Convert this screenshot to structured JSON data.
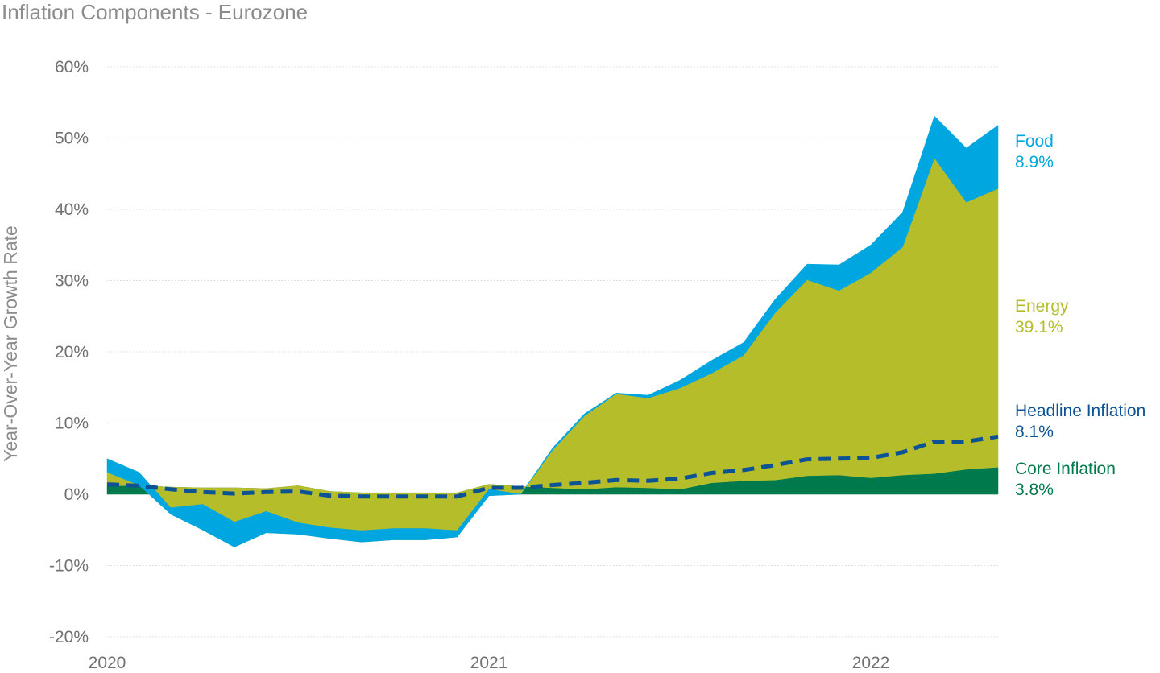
{
  "chart_data": {
    "type": "area",
    "title": "Inflation Components - Eurozone",
    "xlabel": "",
    "ylabel": "Year-Over-Year Growth Rate",
    "ylim": [
      -20,
      60
    ],
    "yticks": [
      "60%",
      "50%",
      "40%",
      "30%",
      "20%",
      "10%",
      "0%",
      "-10%",
      "-20%"
    ],
    "ytick_values": [
      60,
      50,
      40,
      30,
      20,
      10,
      0,
      -10,
      -20
    ],
    "xticks": [
      "2020",
      "2021",
      "2022"
    ],
    "xtick_values": [
      "2020-01",
      "2021-01",
      "2022-01"
    ],
    "grid": true,
    "x": [
      "2020-01",
      "2020-02",
      "2020-03",
      "2020-04",
      "2020-05",
      "2020-06",
      "2020-07",
      "2020-08",
      "2020-09",
      "2020-10",
      "2020-11",
      "2020-12",
      "2021-01",
      "2021-02",
      "2021-03",
      "2021-04",
      "2021-05",
      "2021-06",
      "2021-07",
      "2021-08",
      "2021-09",
      "2021-10",
      "2021-11",
      "2021-12",
      "2022-01",
      "2022-02",
      "2022-03",
      "2022-04",
      "2022-05"
    ],
    "series": [
      {
        "name": "Core Inflation",
        "label_value": "3.8%",
        "color": "#007a4d",
        "kind": "area",
        "values": [
          1.2,
          1.2,
          1.0,
          0.9,
          0.9,
          0.8,
          1.2,
          0.4,
          0.2,
          0.2,
          0.2,
          0.2,
          1.4,
          1.1,
          0.9,
          0.7,
          1.0,
          0.9,
          0.7,
          1.6,
          1.9,
          2.0,
          2.6,
          2.7,
          2.3,
          2.7,
          2.9,
          3.5,
          3.8
        ]
      },
      {
        "name": "Energy",
        "label_value": "39.1%",
        "color": "#b5bd2a",
        "kind": "area",
        "values": [
          1.9,
          0.1,
          -3.8,
          -5.9,
          -8.3,
          -6.2,
          -6.8,
          -6.6,
          -6.9,
          -6.6,
          -6.6,
          -6.2,
          -1.6,
          -1.1,
          5.3,
          10.3,
          13.1,
          12.6,
          14.2,
          15.4,
          17.6,
          23.5,
          27.5,
          25.9,
          28.8,
          32.0,
          44.3,
          37.5,
          39.1
        ]
      },
      {
        "name": "Food",
        "label_value": "8.9%",
        "color": "#00a6e0",
        "kind": "area",
        "values": [
          1.9,
          1.8,
          0.9,
          3.6,
          3.5,
          3.0,
          1.6,
          1.5,
          1.6,
          1.6,
          1.6,
          0.9,
          0.9,
          0.0,
          0.3,
          0.3,
          0.1,
          0.4,
          1.1,
          1.8,
          1.8,
          1.9,
          2.2,
          3.6,
          3.9,
          4.9,
          5.9,
          7.6,
          8.9
        ]
      },
      {
        "name": "Headline Inflation",
        "label_value": "8.1%",
        "color": "#0b5394",
        "kind": "dashed-line",
        "values": [
          1.4,
          1.2,
          0.7,
          0.3,
          0.1,
          0.3,
          0.4,
          -0.2,
          -0.3,
          -0.3,
          -0.3,
          -0.3,
          0.9,
          0.9,
          1.3,
          1.6,
          2.0,
          1.9,
          2.2,
          3.0,
          3.4,
          4.1,
          4.9,
          5.0,
          5.1,
          5.9,
          7.4,
          7.4,
          8.1
        ]
      }
    ],
    "legend": "direct labels at right"
  }
}
